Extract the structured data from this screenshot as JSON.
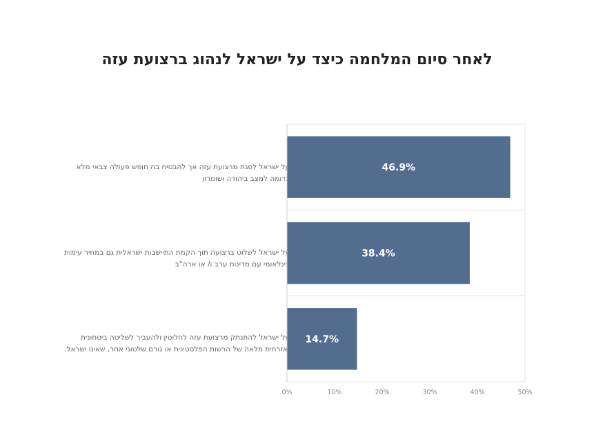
{
  "chart_data": {
    "type": "bar",
    "orientation": "horizontal",
    "title": "לאחר סיום המלחמה כיצד על ישראל לנהוג ברצועת עזה",
    "categories": [
      "על ישראל לסגת מרצועת עזה אך להבטיח בה חופש פעולה צבאי מלא בדומה למצב ביהודה ושומרון",
      "על ישראל לשלוט ברצועה תוך הקמת התיישבות ישראלית גם במחיר עימות בינלאומי עם מדינות ערב ו/ או ארה\"ב",
      "על ישראל להתנתק מרצועת עזה לחלוטין ולהעביר לשליטה ביטחונית ואזרחית מלאה של הרשות הפלסטינית או גורם שלטוני אחר, שאינו ישראל."
    ],
    "values": [
      46.9,
      38.4,
      14.7
    ],
    "data_labels": [
      "46.9%",
      "38.4%",
      "14.7%"
    ],
    "xlim": [
      0,
      50
    ],
    "xticks": [
      0,
      10,
      20,
      30,
      40,
      50
    ],
    "xtick_labels": [
      "0%",
      "10%",
      "20%",
      "30%",
      "40%",
      "50%"
    ],
    "grid": true,
    "bar_color": "#536d8f"
  }
}
